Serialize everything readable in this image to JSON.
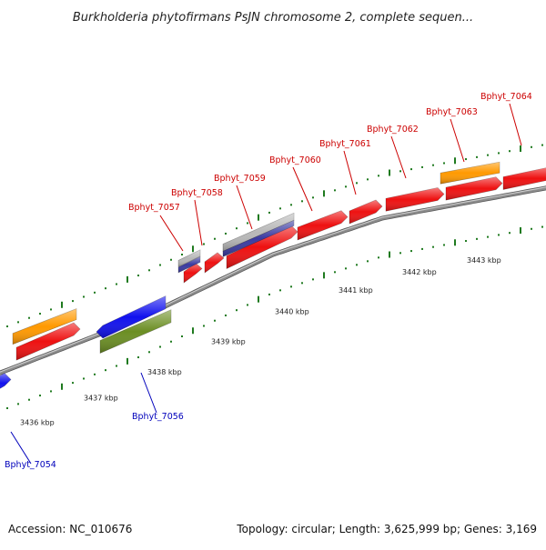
{
  "title": "Burkholderia phytofirmans PsJN chromosome 2, complete sequen...",
  "footer": {
    "accession": "Accession: NC_010676",
    "topology": "Topology: circular; Length: 3,625,999 bp; Genes: 3,169"
  },
  "axis_unit": "kbp",
  "ticks": [
    "3436",
    "3437",
    "3438",
    "3439",
    "3440",
    "3441",
    "3442",
    "3443"
  ],
  "colors": {
    "backbone": "#8c8c8c",
    "tick": "#1f7a1f",
    "label_red": "#cc0000",
    "label_blue": "#0000bb",
    "orange": "#ff9900",
    "red": "#ee1111",
    "blue": "#1111ee",
    "olive": "#6b8e23",
    "navy": "#3a3aa0",
    "gray": "#b8b8b8"
  },
  "genes": [
    {
      "name": "Bphyt_7054",
      "strand": "-",
      "color": "blue"
    },
    {
      "name": "Bphyt_7056",
      "strand": "-",
      "color": "blue"
    },
    {
      "name": "Bphyt_7057",
      "strand": "+",
      "color": "red"
    },
    {
      "name": "Bphyt_7058",
      "strand": "+",
      "color": "red"
    },
    {
      "name": "Bphyt_7059",
      "strand": "+",
      "color": "red"
    },
    {
      "name": "Bphyt_7060",
      "strand": "+",
      "color": "red"
    },
    {
      "name": "Bphyt_7061",
      "strand": "+",
      "color": "red"
    },
    {
      "name": "Bphyt_7062",
      "strand": "+",
      "color": "red"
    },
    {
      "name": "Bphyt_7063",
      "strand": "+",
      "color": "red"
    },
    {
      "name": "Bphyt_7064",
      "strand": "+",
      "color": "red"
    }
  ]
}
